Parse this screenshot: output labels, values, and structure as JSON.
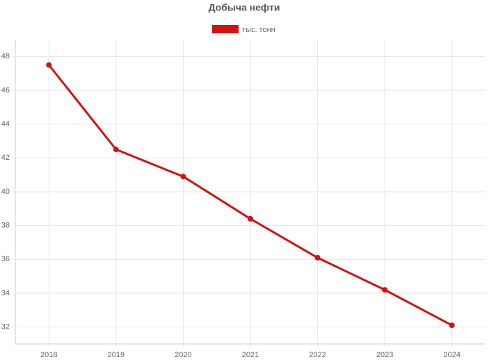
{
  "chart_data": {
    "type": "line",
    "title": "Добыча нефти",
    "categories": [
      "2018",
      "2019",
      "2020",
      "2021",
      "2022",
      "2023",
      "2024"
    ],
    "series": [
      {
        "name": "тыс. тонн",
        "color": "#d41111",
        "values": [
          47.5,
          42.5,
          40.9,
          38.4,
          36.1,
          34.2,
          32.1
        ]
      }
    ],
    "ylim": [
      31,
      49
    ],
    "yticks": [
      32,
      34,
      36,
      38,
      40,
      42,
      44,
      46,
      48
    ],
    "grid": true
  }
}
